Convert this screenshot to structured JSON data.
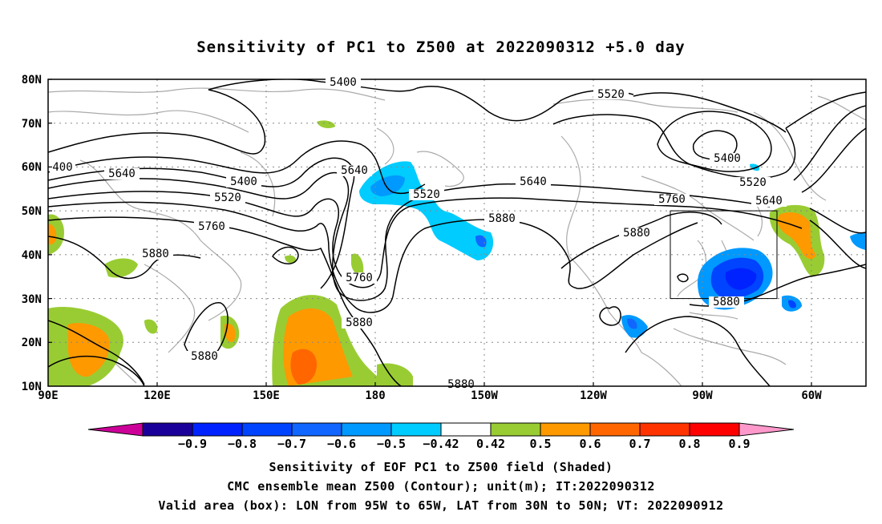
{
  "title": "Sensitivity of PC1 to Z500 at 2022090312 +5.0 day",
  "lat_labels": [
    "80N",
    "70N",
    "60N",
    "50N",
    "40N",
    "30N",
    "20N",
    "10N"
  ],
  "lon_labels": [
    "90E",
    "120E",
    "150E",
    "180",
    "150W",
    "120W",
    "90W",
    "60W"
  ],
  "contour_labels": {
    "l5400_top": "5400",
    "l5520_top": "5520",
    "l400_left": "400",
    "l5640_left": "5640",
    "l5400_mid": "5400",
    "l5520_mid": "5520",
    "l5760_left": "5760",
    "l5880_left": "5880",
    "l5640_mid": "5640",
    "l5520_c": "5520",
    "l5640_c": "5640",
    "l5880_c": "5880",
    "l5760_p": "5760",
    "l5880_low": "5880",
    "l5880_sw": "5880",
    "l5400_ne": "5400",
    "l5520_ne": "5520",
    "l5640_ne": "5640",
    "l5760_ne": "5760",
    "l5880_e": "5880",
    "l5880_box": "5880",
    "l5880_bot": "5880"
  },
  "colorbar": {
    "labels": [
      "-0.9",
      "-0.8",
      "-0.7",
      "-0.6",
      "-0.5",
      "-0.42",
      "0.42",
      "0.5",
      "0.6",
      "0.7",
      "0.8",
      "0.9"
    ],
    "colors": [
      "#1a0099",
      "#0022ff",
      "#0044ff",
      "#1166ff",
      "#0099ff",
      "#00ccff",
      "#ffffff",
      "#99cc33",
      "#ff9900",
      "#ff6600",
      "#ff3300",
      "#ff0000"
    ],
    "left_arrow_color": "#cc0099",
    "right_arrow_color": "#ff99cc"
  },
  "captions": [
    "Sensitivity of EOF PC1 to Z500 field (Shaded)",
    "CMC ensemble mean Z500 (Contour); unit(m); IT:2022090312",
    "Valid area (box): LON from 95W to 65W, LAT from 30N to 50N; VT: 2022090912"
  ]
}
